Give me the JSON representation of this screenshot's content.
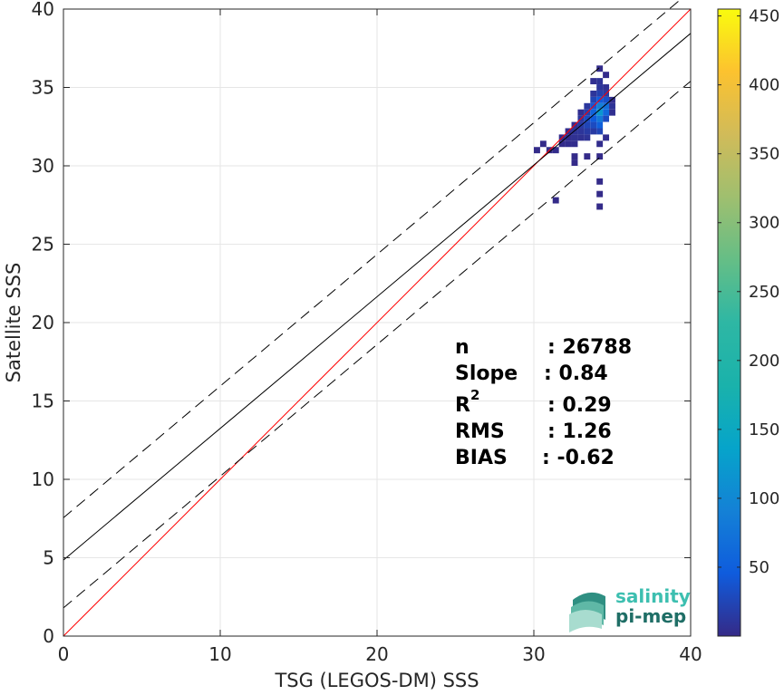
{
  "chart_data": {
    "type": "heatmap",
    "title": "",
    "xlabel": "TSG (LEGOS-DM) SSS",
    "ylabel": "Satellite SSS",
    "xlim": [
      0,
      40
    ],
    "ylim": [
      0,
      40
    ],
    "xticks": [
      0,
      10,
      20,
      30,
      40
    ],
    "yticks": [
      0,
      5,
      10,
      15,
      20,
      25,
      30,
      35,
      40
    ],
    "grid": true,
    "colorbar": {
      "colormap": "parula",
      "range": [
        0,
        455
      ],
      "ticks": [
        50,
        100,
        150,
        200,
        250,
        300,
        350,
        400,
        450
      ]
    },
    "lines": [
      {
        "name": "identity",
        "intercept": 0,
        "slope": 1,
        "color": "#ff0000",
        "style": "solid"
      },
      {
        "name": "fit",
        "intercept": 4.85,
        "slope": 0.84,
        "color": "#000000",
        "style": "solid"
      },
      {
        "name": "fit-upper",
        "intercept": 7.55,
        "slope": 0.84,
        "color": "#000000",
        "style": "dashed"
      },
      {
        "name": "fit-lower",
        "intercept": 1.8,
        "slope": 0.84,
        "color": "#000000",
        "style": "dashed"
      }
    ],
    "density_cells": [
      {
        "x": 34.2,
        "y": 34.6,
        "count": 20
      },
      {
        "x": 34.2,
        "y": 34.2,
        "count": 45
      },
      {
        "x": 34.2,
        "y": 33.8,
        "count": 90
      },
      {
        "x": 34.2,
        "y": 33.4,
        "count": 120
      },
      {
        "x": 34.2,
        "y": 33.0,
        "count": 80
      },
      {
        "x": 34.2,
        "y": 32.6,
        "count": 50
      },
      {
        "x": 34.2,
        "y": 32.2,
        "count": 25
      },
      {
        "x": 34.2,
        "y": 35.0,
        "count": 10
      },
      {
        "x": 34.2,
        "y": 35.4,
        "count": 8
      },
      {
        "x": 34.6,
        "y": 34.2,
        "count": 35
      },
      {
        "x": 34.6,
        "y": 33.8,
        "count": 70
      },
      {
        "x": 34.6,
        "y": 33.4,
        "count": 60
      },
      {
        "x": 34.6,
        "y": 33.0,
        "count": 30
      },
      {
        "x": 34.6,
        "y": 34.6,
        "count": 15
      },
      {
        "x": 34.6,
        "y": 35.0,
        "count": 6
      },
      {
        "x": 33.8,
        "y": 34.2,
        "count": 25
      },
      {
        "x": 33.8,
        "y": 33.8,
        "count": 40
      },
      {
        "x": 33.8,
        "y": 33.4,
        "count": 55
      },
      {
        "x": 33.8,
        "y": 33.0,
        "count": 45
      },
      {
        "x": 33.8,
        "y": 32.6,
        "count": 30
      },
      {
        "x": 33.8,
        "y": 32.2,
        "count": 15
      },
      {
        "x": 33.8,
        "y": 34.6,
        "count": 10
      },
      {
        "x": 33.8,
        "y": 35.4,
        "count": 5
      },
      {
        "x": 33.4,
        "y": 33.4,
        "count": 20
      },
      {
        "x": 33.4,
        "y": 33.0,
        "count": 30
      },
      {
        "x": 33.4,
        "y": 32.6,
        "count": 25
      },
      {
        "x": 33.4,
        "y": 32.2,
        "count": 15
      },
      {
        "x": 33.4,
        "y": 33.8,
        "count": 12
      },
      {
        "x": 33.4,
        "y": 31.8,
        "count": 8
      },
      {
        "x": 33.0,
        "y": 33.0,
        "count": 12
      },
      {
        "x": 33.0,
        "y": 32.6,
        "count": 15
      },
      {
        "x": 33.0,
        "y": 32.2,
        "count": 10
      },
      {
        "x": 33.0,
        "y": 31.8,
        "count": 6
      },
      {
        "x": 33.0,
        "y": 33.4,
        "count": 5
      },
      {
        "x": 32.6,
        "y": 32.2,
        "count": 8
      },
      {
        "x": 32.6,
        "y": 31.8,
        "count": 6
      },
      {
        "x": 32.6,
        "y": 32.6,
        "count": 5
      },
      {
        "x": 32.6,
        "y": 31.4,
        "count": 3
      },
      {
        "x": 32.2,
        "y": 31.8,
        "count": 4
      },
      {
        "x": 32.2,
        "y": 31.4,
        "count": 3
      },
      {
        "x": 32.2,
        "y": 32.2,
        "count": 3
      },
      {
        "x": 31.8,
        "y": 31.4,
        "count": 2
      },
      {
        "x": 31.8,
        "y": 31.8,
        "count": 2
      },
      {
        "x": 31.4,
        "y": 31.0,
        "count": 2
      },
      {
        "x": 31.0,
        "y": 31.0,
        "count": 1
      },
      {
        "x": 30.6,
        "y": 31.4,
        "count": 1
      },
      {
        "x": 30.2,
        "y": 31.0,
        "count": 1
      },
      {
        "x": 35.0,
        "y": 33.8,
        "count": 8
      },
      {
        "x": 35.0,
        "y": 33.4,
        "count": 5
      },
      {
        "x": 35.0,
        "y": 34.2,
        "count": 4
      },
      {
        "x": 34.6,
        "y": 35.8,
        "count": 2
      },
      {
        "x": 34.2,
        "y": 36.2,
        "count": 2
      },
      {
        "x": 34.2,
        "y": 31.4,
        "count": 3
      },
      {
        "x": 34.6,
        "y": 31.8,
        "count": 4
      },
      {
        "x": 34.2,
        "y": 30.6,
        "count": 1
      },
      {
        "x": 33.4,
        "y": 30.6,
        "count": 1
      },
      {
        "x": 32.6,
        "y": 30.2,
        "count": 1
      },
      {
        "x": 31.4,
        "y": 27.8,
        "count": 1
      },
      {
        "x": 34.2,
        "y": 27.4,
        "count": 1
      },
      {
        "x": 34.2,
        "y": 28.2,
        "count": 1
      },
      {
        "x": 34.2,
        "y": 29.0,
        "count": 1
      },
      {
        "x": 32.6,
        "y": 30.6,
        "count": 1
      }
    ]
  },
  "stats": [
    {
      "label": "n",
      "sup": "",
      "value": ": 26788"
    },
    {
      "label": "Slope",
      "sup": "",
      "value": ": 0.84"
    },
    {
      "label": "R",
      "sup": "2",
      "value": ": 0.29"
    },
    {
      "label": "RMS",
      "sup": "",
      "value": ": 1.26"
    },
    {
      "label": "BIAS",
      "sup": "",
      "value": ": -0.62"
    }
  ],
  "logo": {
    "line1": "salinity",
    "line2": "pi-mep"
  }
}
